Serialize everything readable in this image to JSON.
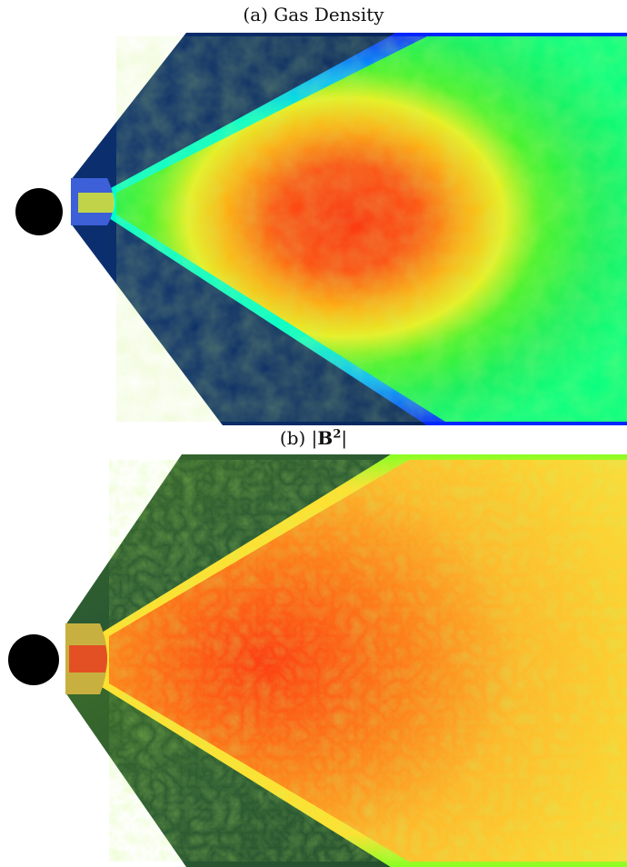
{
  "figure": {
    "panel_a": {
      "caption": "(a) Gas Density"
    },
    "panel_b": {
      "caption_prefix": "(b) |",
      "caption_symbol": "B",
      "caption_exponent": "2",
      "caption_suffix": "|"
    }
  },
  "colors": {
    "background": "#ffffff",
    "black_hole": "#000000",
    "density_outer": "#0a2a6b",
    "density_edge": "#0022ff",
    "density_mid": "#00ff44",
    "density_core": "#ff3a10",
    "bfield_outer": "#2f5a2a",
    "bfield_edge": "#aaff22",
    "bfield_mid": "#ffb020",
    "bfield_core": "#ff3a10"
  }
}
